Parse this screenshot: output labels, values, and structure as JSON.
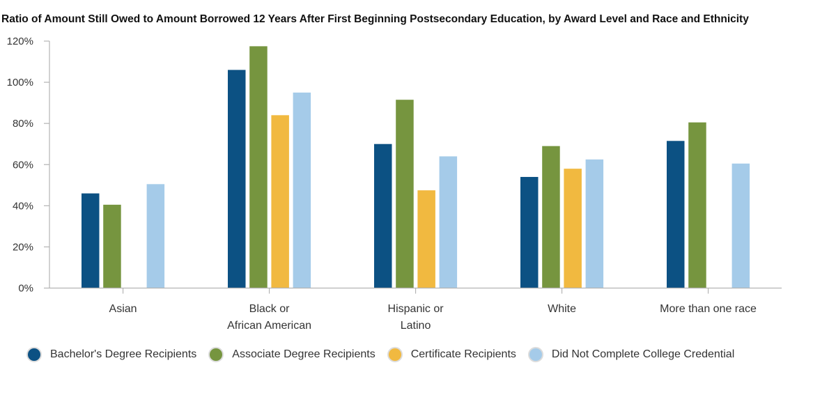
{
  "chart_data": {
    "type": "bar",
    "title": "Ratio of Amount Still Owed to Amount Borrowed 12 Years After First Beginning Postsecondary Education, by Award Level and Race and Ethnicity",
    "xlabel": "",
    "ylabel": "",
    "ylim": [
      0,
      120
    ],
    "yticks": [
      "0%",
      "20%",
      "40%",
      "60%",
      "80%",
      "100%",
      "120%"
    ],
    "ytick_values": [
      0,
      20,
      40,
      60,
      80,
      100,
      120
    ],
    "grid": false,
    "legend_position": "bottom",
    "categories": [
      [
        "Asian"
      ],
      [
        "Black or",
        "African American"
      ],
      [
        "Hispanic or",
        "Latino"
      ],
      [
        "White"
      ],
      [
        "More than one race"
      ]
    ],
    "series": [
      {
        "name": "Bachelor's Degree Recipients",
        "color": "#0c5183",
        "values": [
          46,
          106,
          70,
          54,
          71.5
        ]
      },
      {
        "name": "Associate Degree Recipients",
        "color": "#76953f",
        "values": [
          40.5,
          117.5,
          91.5,
          69,
          80.5
        ]
      },
      {
        "name": "Certificate Recipients",
        "color": "#f1b940",
        "values": [
          null,
          84,
          47.5,
          58,
          null
        ]
      },
      {
        "name": "Did Not Complete College Credential",
        "color": "#a5cbe9",
        "values": [
          50.5,
          95,
          64,
          62.5,
          60.5
        ]
      }
    ]
  }
}
